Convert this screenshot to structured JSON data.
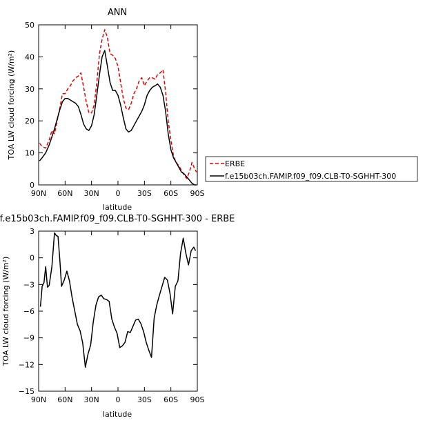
{
  "charts": [
    {
      "title": "ANN",
      "xlabel": "latitude",
      "ylabel": "TOA LW cloud forcing (W/m²)"
    },
    {
      "title": "f.e15b03ch.FAMIP.f09_f09.CLB-T0-SGHHT-300 - ERBE",
      "xlabel": "latitude",
      "ylabel": "TOA LW cloud forcing (W/m²)"
    }
  ],
  "chart_data": [
    {
      "type": "line",
      "title": "ANN",
      "xlabel": "latitude",
      "ylabel": "TOA LW cloud forcing (W/m²)",
      "xlim": [
        90,
        -90
      ],
      "ylim": [
        0,
        50
      ],
      "xticks": [
        90,
        60,
        30,
        0,
        -30,
        -60,
        -90
      ],
      "xtick_labels": [
        "90N",
        "60N",
        "30N",
        "0",
        "30S",
        "60S",
        "90S"
      ],
      "yticks": [
        0,
        10,
        20,
        30,
        40,
        50
      ],
      "legend_position": "right",
      "series": [
        {
          "name": "ERBE",
          "color": "#e00000",
          "dash": true,
          "x": [
            89,
            86,
            82,
            78,
            75,
            72,
            69,
            66,
            63,
            60,
            57,
            54,
            51,
            48,
            45,
            42,
            39,
            36,
            33,
            30,
            27,
            24,
            21,
            18,
            15,
            12,
            9,
            6,
            3,
            0,
            -3,
            -6,
            -9,
            -12,
            -15,
            -18,
            -21,
            -24,
            -27,
            -30,
            -33,
            -36,
            -39,
            -42,
            -45,
            -48,
            -51,
            -54,
            -57,
            -60,
            -63,
            -66,
            -69,
            -72,
            -75,
            -78,
            -81,
            -84,
            -87,
            -89
          ],
          "y": [
            13,
            12,
            11.5,
            14,
            17,
            16,
            20,
            24,
            28.5,
            28.5,
            30,
            31,
            32.5,
            33.5,
            34,
            35,
            30.5,
            26,
            22.5,
            22.5,
            25,
            32,
            41,
            45.5,
            48.5,
            46,
            41,
            40.5,
            39.5,
            37,
            32,
            27,
            24,
            23.5,
            25.5,
            28.5,
            30,
            32.5,
            33.5,
            31,
            32.5,
            33.5,
            33.5,
            33,
            34.5,
            35,
            36,
            29,
            20,
            14,
            9,
            7,
            6,
            4.5,
            3,
            2,
            4,
            7,
            5,
            4
          ]
        },
        {
          "name": "f.e15b03ch.FAMIP.f09_f09.CLB-T0-SGHHT-300",
          "color": "#000000",
          "dash": false,
          "x": [
            89,
            86,
            82,
            78,
            75,
            72,
            69,
            66,
            63,
            60,
            57,
            54,
            51,
            48,
            45,
            42,
            39,
            36,
            33,
            30,
            27,
            24,
            21,
            18,
            15,
            12,
            9,
            6,
            3,
            0,
            -3,
            -6,
            -9,
            -12,
            -15,
            -18,
            -21,
            -24,
            -27,
            -30,
            -33,
            -36,
            -39,
            -42,
            -45,
            -48,
            -51,
            -54,
            -57,
            -60,
            -63,
            -66,
            -69,
            -72,
            -75,
            -78,
            -81,
            -84,
            -87,
            -89
          ],
          "y": [
            7.5,
            8.5,
            10,
            12.5,
            15,
            17.5,
            20.5,
            23.5,
            26,
            27,
            27,
            26.5,
            26,
            25.5,
            24.5,
            22,
            19,
            17.5,
            17,
            18.5,
            22,
            28,
            34.5,
            40,
            42,
            37,
            32,
            29.5,
            29.5,
            28,
            25,
            21,
            17.5,
            16.5,
            17,
            18.5,
            20,
            21.5,
            23,
            25,
            28,
            29.5,
            30.5,
            31,
            31.5,
            30.5,
            28,
            23,
            16,
            11,
            8.5,
            7,
            5.5,
            4,
            3.5,
            2.5,
            1.5,
            0.5,
            0,
            0
          ]
        }
      ]
    },
    {
      "type": "line",
      "title": "f.e15b03ch.FAMIP.f09_f09.CLB-T0-SGHHT-300 - ERBE",
      "xlabel": "latitude",
      "ylabel": "TOA LW cloud forcing (W/m²)",
      "xlim": [
        90,
        -90
      ],
      "ylim": [
        -15,
        3
      ],
      "xticks": [
        90,
        60,
        30,
        0,
        -30,
        -60,
        -90
      ],
      "xtick_labels": [
        "90N",
        "60N",
        "30N",
        "0",
        "30S",
        "60S",
        "90S"
      ],
      "yticks": [
        -15,
        -12,
        -9,
        -6,
        -3,
        0,
        3
      ],
      "series": [
        {
          "color": "#000000",
          "dash": false,
          "x": [
            88,
            86,
            84,
            82,
            80,
            78,
            75,
            72,
            70,
            68,
            66,
            64,
            61,
            58,
            55,
            52,
            49,
            46,
            43,
            40,
            37,
            34,
            31,
            28,
            25,
            22,
            19,
            16,
            13,
            10,
            7,
            4,
            1,
            -2,
            -5,
            -8,
            -11,
            -14,
            -17,
            -20,
            -23,
            -26,
            -29,
            -32,
            -35,
            -38,
            -41,
            -44,
            -47,
            -50,
            -53,
            -56,
            -59,
            -62,
            -65,
            -68,
            -71,
            -74,
            -77,
            -80,
            -83,
            -86,
            -88
          ],
          "y": [
            -5.5,
            -3.2,
            -2.8,
            -1,
            -3.3,
            -3.1,
            -1,
            2.8,
            2.5,
            2.4,
            -0.2,
            -3.2,
            -2.5,
            -1.5,
            -2.6,
            -4.5,
            -6,
            -7.5,
            -8.2,
            -9.6,
            -12.3,
            -10.8,
            -9.8,
            -7.2,
            -5.3,
            -4.4,
            -4.2,
            -4.6,
            -4.7,
            -4.9,
            -6.9,
            -7.8,
            -8.5,
            -10.1,
            -9.9,
            -9.5,
            -8.3,
            -8.4,
            -7.7,
            -7.0,
            -6.9,
            -7.4,
            -8.3,
            -9.5,
            -10.4,
            -11.2,
            -6.8,
            -5.3,
            -4.2,
            -3.2,
            -2.2,
            -2.5,
            -4.0,
            -6.3,
            -3.2,
            -2.6,
            0.5,
            2.2,
            0.5,
            -0.8,
            0.8,
            1.2,
            0.8
          ]
        }
      ]
    }
  ]
}
